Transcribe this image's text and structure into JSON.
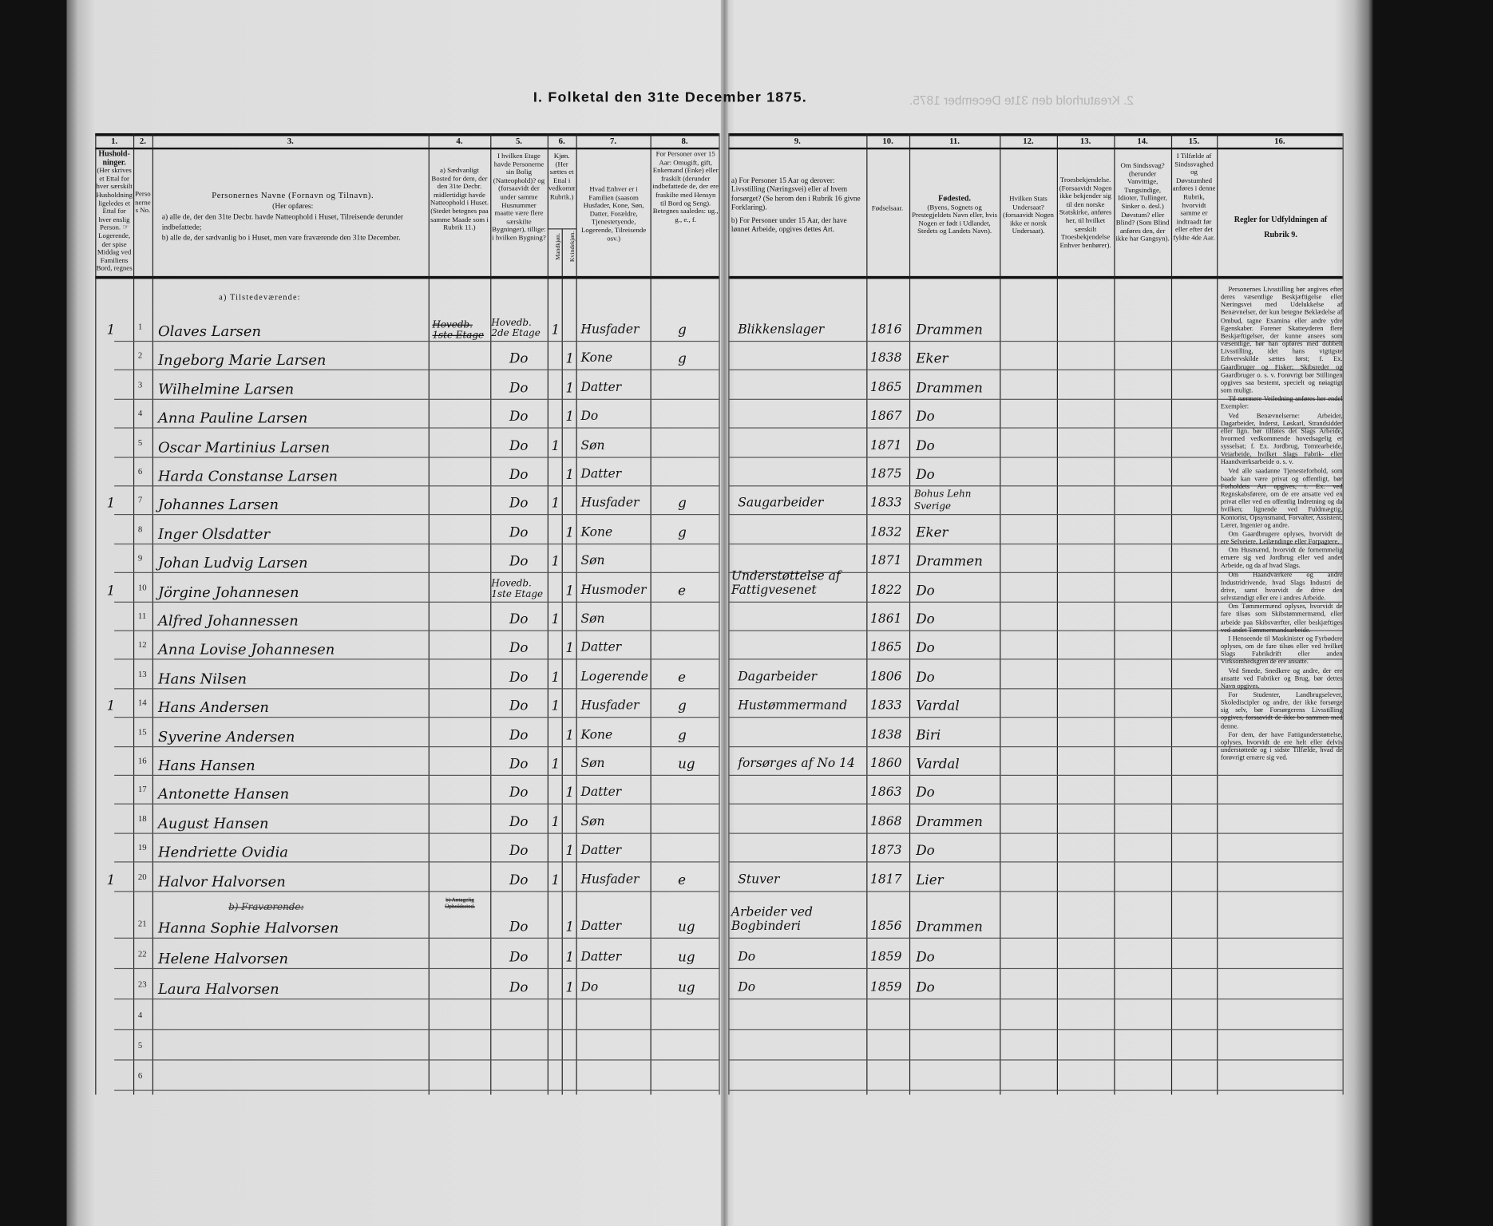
{
  "title": "I. Folketal den 31te December 1875.",
  "bleedthrough": "2. Kreaturhold den 31te December 1875.",
  "columns": {
    "numbers": [
      "1.",
      "2.",
      "3.",
      "4.",
      "5.",
      "6.",
      "7.",
      "8.",
      "9.",
      "10.",
      "11.",
      "12.",
      "13.",
      "14.",
      "15.",
      "16."
    ],
    "c1": {
      "title": "Hushold-ninger.",
      "text": "(Her skrives et Ettal for hver særskilt Husholdning; ligeledes et Ettal for hver enslig Person. ☞ Logerende, der spise Middag ved Familiens Bord, regnes ikke som enslige)."
    },
    "c2": {
      "text": "Personernes No."
    },
    "c3": {
      "title": "Personernes Navne (Fornavn og Tilnavn).",
      "intro": "(Her opføres:",
      "a": "a) alle de, der den 31te Decbr. havde Natteophold i Huset, Tilreisende derunder indbefattede;",
      "b": "b) alle de, der sædvanlig bo i Huset, men vare fraværende den 31te December."
    },
    "c4": {
      "text": "a) Sædvanligt Bosted for dem, der den 31te Decbr. midlertidigt havde Natteophold i Huset. (Stedet betegnes paa samme Maade som i Rubrik 11.)"
    },
    "c5": {
      "text": "I hvilken Etage havde Personerne sin Bolig (Natteophold)? og (forsaavidt der under samme Husnummer maatte være flere særskilte Bygninger), tillige: i hvilken Bygning?"
    },
    "c6": {
      "text": "Kjøn. (Her sættes et Ettal i vedkommende Rubrik.)",
      "male": "Mandkjøn.",
      "female": "Kvindekjøn."
    },
    "c7": {
      "text": "Hvad Enhver er i Familien (saasom Husfader, Kone, Søn, Datter, Forældre, Tjenestetyende, Logerende, Tilreisende osv.)"
    },
    "c8": {
      "text": "For Personer over 15 Aar: Omugift, gift, Enkemand (Enke) eller fraskilt (derunder indbefattede de, der ere fraskilte med Hensyn til Bord og Seng). Betegnes saaledes: ug., g., e., f."
    },
    "c9": {
      "a": "a) For Personer 15 Aar og derover: Livsstilling (Næringsvei) eller af hvem forsørget? (Se herom den i Rubrik 16 givne Forklaring).",
      "b": "b) For Personer under 15 Aar, der have lønnet Arbeide, opgives dettes Art."
    },
    "c10": {
      "text": "Fødselsaar."
    },
    "c11": {
      "title": "Fødested.",
      "text": "(Byens, Sognets og Prestegjeldets Navn eller, hvis Nogen er født i Udlandet, Stedets og Landets Navn)."
    },
    "c12": {
      "text": "Hvilken Stats Undersaat? (forsaavidt Nogen ikke er norsk Undersaat)."
    },
    "c13": {
      "text": "Troesbekjendelse. (Forsaavidt Nogen ikke bekjender sig til den norske Statskirke, anføres her, til hvilket særskilt Troesbekjendelse Enhver benhører)."
    },
    "c14": {
      "text": "Om Sindssvag? (herunder Vanvittige, Tungsindige, Idioter, Tullinger, Sinker o. desl.) Døvstum? eller Blind? (Som Blind anføres den, der ikke har Gangsyn)."
    },
    "c15": {
      "text": "I Tilfælde af Sindssvaghed og Døvstumhed anføres i denne Rubrik, hvorvidt samme er indtraadt før eller efter det fyldte 4de Aar."
    },
    "c16": {
      "title": "Regler for Udfyldningen af Rubrik 9."
    }
  },
  "section_present": "a) Tilstedeværende:",
  "section_absent": "b) Fraværende:",
  "absent_c4": "b) Antagelig Opholdssted.",
  "rows": [
    {
      "hh": "1",
      "nr": "1",
      "name": "Olaves Larsen",
      "c4": "Hovedb. 1ste Etage",
      "c5": "Hovedb. 2de Etage",
      "m": "1",
      "f": "",
      "role": "Husfader",
      "civ": "g",
      "occ": "Blikkenslager",
      "year": "1816",
      "place": "Drammen"
    },
    {
      "hh": "",
      "nr": "2",
      "name": "Ingeborg Marie Larsen",
      "c4": "",
      "c5": "Do",
      "m": "",
      "f": "1",
      "role": "Kone",
      "civ": "g",
      "occ": "",
      "year": "1838",
      "place": "Eker"
    },
    {
      "hh": "",
      "nr": "3",
      "name": "Wilhelmine Larsen",
      "c4": "",
      "c5": "Do",
      "m": "",
      "f": "1",
      "role": "Datter",
      "civ": "",
      "occ": "",
      "year": "1865",
      "place": "Drammen"
    },
    {
      "hh": "",
      "nr": "4",
      "name": "Anna Pauline Larsen",
      "c4": "",
      "c5": "Do",
      "m": "",
      "f": "1",
      "role": "Do",
      "civ": "",
      "occ": "",
      "year": "1867",
      "place": "Do"
    },
    {
      "hh": "",
      "nr": "5",
      "name": "Oscar Martinius Larsen",
      "c4": "",
      "c5": "Do",
      "m": "1",
      "f": "",
      "role": "Søn",
      "civ": "",
      "occ": "",
      "year": "1871",
      "place": "Do"
    },
    {
      "hh": "",
      "nr": "6",
      "name": "Harda Constanse Larsen",
      "c4": "",
      "c5": "Do",
      "m": "",
      "f": "1",
      "role": "Datter",
      "civ": "",
      "occ": "",
      "year": "1875",
      "place": "Do"
    },
    {
      "hh": "1",
      "nr": "7",
      "name": "Johannes Larsen",
      "c4": "",
      "c5": "Do",
      "m": "1",
      "f": "",
      "role": "Husfader",
      "civ": "g",
      "occ": "Saugarbeider",
      "year": "1833",
      "place": "Bohus Lehn Sverige"
    },
    {
      "hh": "",
      "nr": "8",
      "name": "Inger Olsdatter",
      "c4": "",
      "c5": "Do",
      "m": "",
      "f": "1",
      "role": "Kone",
      "civ": "g",
      "occ": "",
      "year": "1832",
      "place": "Eker"
    },
    {
      "hh": "",
      "nr": "9",
      "name": "Johan Ludvig Larsen",
      "c4": "",
      "c5": "Do",
      "m": "1",
      "f": "",
      "role": "Søn",
      "civ": "",
      "occ": "",
      "year": "1871",
      "place": "Drammen"
    },
    {
      "hh": "1",
      "nr": "10",
      "name": "Jörgine Johannesen",
      "c4": "",
      "c5": "Hovedb. 1ste Etage",
      "m": "",
      "f": "1",
      "role": "Husmoder",
      "civ": "e",
      "occ": "Understøttelse af Fattigvesenet",
      "year": "1822",
      "place": "Do"
    },
    {
      "hh": "",
      "nr": "11",
      "name": "Alfred Johannessen",
      "c4": "",
      "c5": "Do",
      "m": "1",
      "f": "",
      "role": "Søn",
      "civ": "",
      "occ": "",
      "year": "1861",
      "place": "Do"
    },
    {
      "hh": "",
      "nr": "12",
      "name": "Anna Lovise Johannesen",
      "c4": "",
      "c5": "Do",
      "m": "",
      "f": "1",
      "role": "Datter",
      "civ": "",
      "occ": "",
      "year": "1865",
      "place": "Do"
    },
    {
      "hh": "",
      "nr": "13",
      "name": "Hans Nilsen",
      "c4": "",
      "c5": "Do",
      "m": "1",
      "f": "",
      "role": "Logerende",
      "civ": "e",
      "occ": "Dagarbeider",
      "year": "1806",
      "place": "Do"
    },
    {
      "hh": "1",
      "nr": "14",
      "name": "Hans Andersen",
      "c4": "",
      "c5": "Do",
      "m": "1",
      "f": "",
      "role": "Husfader",
      "civ": "g",
      "occ": "Hustømmermand",
      "year": "1833",
      "place": "Vardal"
    },
    {
      "hh": "",
      "nr": "15",
      "name": "Syverine Andersen",
      "c4": "",
      "c5": "Do",
      "m": "",
      "f": "1",
      "role": "Kone",
      "civ": "g",
      "occ": "",
      "year": "1838",
      "place": "Biri"
    },
    {
      "hh": "",
      "nr": "16",
      "name": "Hans Hansen",
      "c4": "",
      "c5": "Do",
      "m": "1",
      "f": "",
      "role": "Søn",
      "civ": "ug",
      "occ": "forsørges af No 14",
      "year": "1860",
      "place": "Vardal"
    },
    {
      "hh": "",
      "nr": "17",
      "name": "Antonette Hansen",
      "c4": "",
      "c5": "Do",
      "m": "",
      "f": "1",
      "role": "Datter",
      "civ": "",
      "occ": "",
      "year": "1863",
      "place": "Do"
    },
    {
      "hh": "",
      "nr": "18",
      "name": "August Hansen",
      "c4": "",
      "c5": "Do",
      "m": "1",
      "f": "",
      "role": "Søn",
      "civ": "",
      "occ": "",
      "year": "1868",
      "place": "Drammen"
    },
    {
      "hh": "",
      "nr": "19",
      "name": "Hendriette Ovidia",
      "c4": "",
      "c5": "Do",
      "m": "",
      "f": "1",
      "role": "Datter",
      "civ": "",
      "occ": "",
      "year": "1873",
      "place": "Do"
    },
    {
      "hh": "1",
      "nr": "20",
      "name": "Halvor Halvorsen",
      "c4": "",
      "c5": "Do",
      "m": "1",
      "f": "",
      "role": "Husfader",
      "civ": "e",
      "occ": "Stuver",
      "year": "1817",
      "place": "Lier"
    },
    {
      "hh": "",
      "nr": "21",
      "name": "Hanna Sophie Halvorsen",
      "c4": "",
      "c5": "Do",
      "m": "",
      "f": "1",
      "role": "Datter",
      "civ": "ug",
      "occ": "Arbeider ved Bogbinderi",
      "year": "1856",
      "place": "Drammen"
    },
    {
      "hh": "",
      "nr": "22",
      "name": "Helene Halvorsen",
      "c4": "",
      "c5": "Do",
      "m": "",
      "f": "1",
      "role": "Datter",
      "civ": "ug",
      "occ": "Do",
      "year": "1859",
      "place": "Do"
    },
    {
      "hh": "",
      "nr": "23",
      "name": "Laura Halvorsen",
      "c4": "",
      "c5": "Do",
      "m": "",
      "f": "1",
      "role": "Do",
      "civ": "ug",
      "occ": "Do",
      "year": "1859",
      "place": "Do"
    },
    {
      "hh": "",
      "nr": "4",
      "name": "",
      "c4": "",
      "c5": "",
      "m": "",
      "f": "",
      "role": "",
      "civ": "",
      "occ": "",
      "year": "",
      "place": ""
    },
    {
      "hh": "",
      "nr": "5",
      "name": "",
      "c4": "",
      "c5": "",
      "m": "",
      "f": "",
      "role": "",
      "civ": "",
      "occ": "",
      "year": "",
      "place": ""
    },
    {
      "hh": "",
      "nr": "6",
      "name": "",
      "c4": "",
      "c5": "",
      "m": "",
      "f": "",
      "role": "",
      "civ": "",
      "occ": "",
      "year": "",
      "place": ""
    }
  ],
  "rules": [
    "Personernes Livsstilling bør angives efter deres væsentlige Beskjæftigelse eller Næringsvei med Udelukkelse af Benævnelser, der kun betegne Beklædelse af Ombud, tagne Examina eller andre ydre Egenskaber. Forener Skatteyderen flere Beskjæftigelser, der kunne ansees som væsentlige, bør han opføres med dobbelt Livsstilling, idet hans vigtigste Erhvervskilde sættes først; f. Ex. Gaardbruger og Fisker; Skibsreder og Gaardbruger o. s. v. Forøvrigt bør Stillingen opgives saa bestemt, specielt og nøiagtigt som muligt.",
    "Til nærmere Veiledning anføres her endel Exempler:",
    "Ved Benævnelserne: Arbeider, Dagarbeider, Inderst, Løskarl, Strandsidder eller lign. bør tilføies det Slags Arbeide, hvormed vedkommende hovedsagelig er sysselsat; f. Ex. Jordbrug, Tomtearbeide, Veiarbeide, hvilket Slags Fabrik- eller Haandværksarbeide o. s. v.",
    "Ved alle saadanne Tjenesteforhold, som baade kan være privat og offentligt, bør Forholdets Art opgives, t. Ex. ved Regnskabsførere, om de ere ansatte ved en privat eller ved en offentlig Indretning og da hvilken; lignende ved Fuldmægtig, Kontorist, Opsynsmand, Forvalter, Assistent, Lærer, Ingenier og andre.",
    "Om Gaardbrugere oplyses, hvorvidt de ere Selveiere, Leilændinge eller Forpagtere.",
    "Om Husmænd, hvorvidt de fornemmelig ernære sig ved Jordbrug eller ved andet Arbeide, og da af hvad Slags.",
    "Om Haandværkere og andre Industridrivende, hvad Slags Industri de drive, samt hvorvidt de drive den selvstændigt eller ere i andres Arbeide.",
    "Om Tømmermænd oplyses, hvorvidt de fare tilsøs som Skibstømmermænd, eller arbeide paa Skibsværfter, eller beskjæftiges ved andet Tømmermandsarbeide.",
    "I Henseende til Maskinister og Fyrbødere oplyses, om de fare tilsøs eller ved hvilket Slags Fabrikdrift eller anden Virksomhedsgren de ere ansatte.",
    "Ved Smede, Snedkere og andre, der ere ansatte ved Fabriker og Brug, bør dettes Navn opgives.",
    "For Studenter, Landbrugselever, Skolediscipler og andre, der ikke forsørge sig selv, bør Forsørgerens Livsstilling opgives, forsaavidt de ikke bo sammen med denne.",
    "For dem, der have Fattigunderstøttelse, oplyses, hvorvidt de ere helt eller delvis understøttede og i sidste Tilfælde, hvad de forøvrigt ernære sig ved."
  ]
}
